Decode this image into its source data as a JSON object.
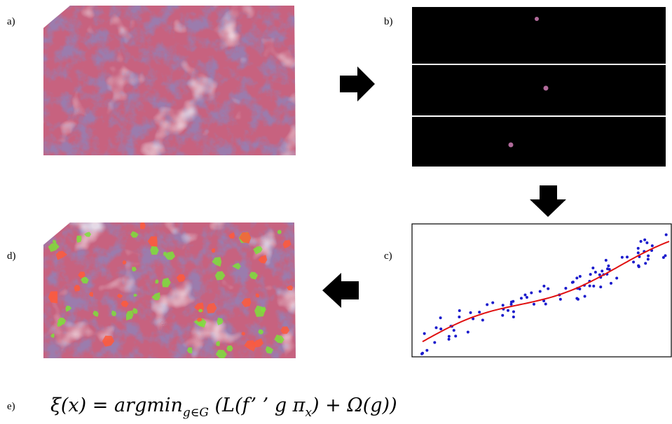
{
  "labels": {
    "a": "a)",
    "b": "b)",
    "c": "c)",
    "d": "d)",
    "e": "e)"
  },
  "formula": {
    "main": "ξ(x) = argmin",
    "sub1": "g∈G",
    "mid": " (L(f’ ’ g π",
    "sub2": "x",
    "end": ") + Ω(g))"
  }
}
